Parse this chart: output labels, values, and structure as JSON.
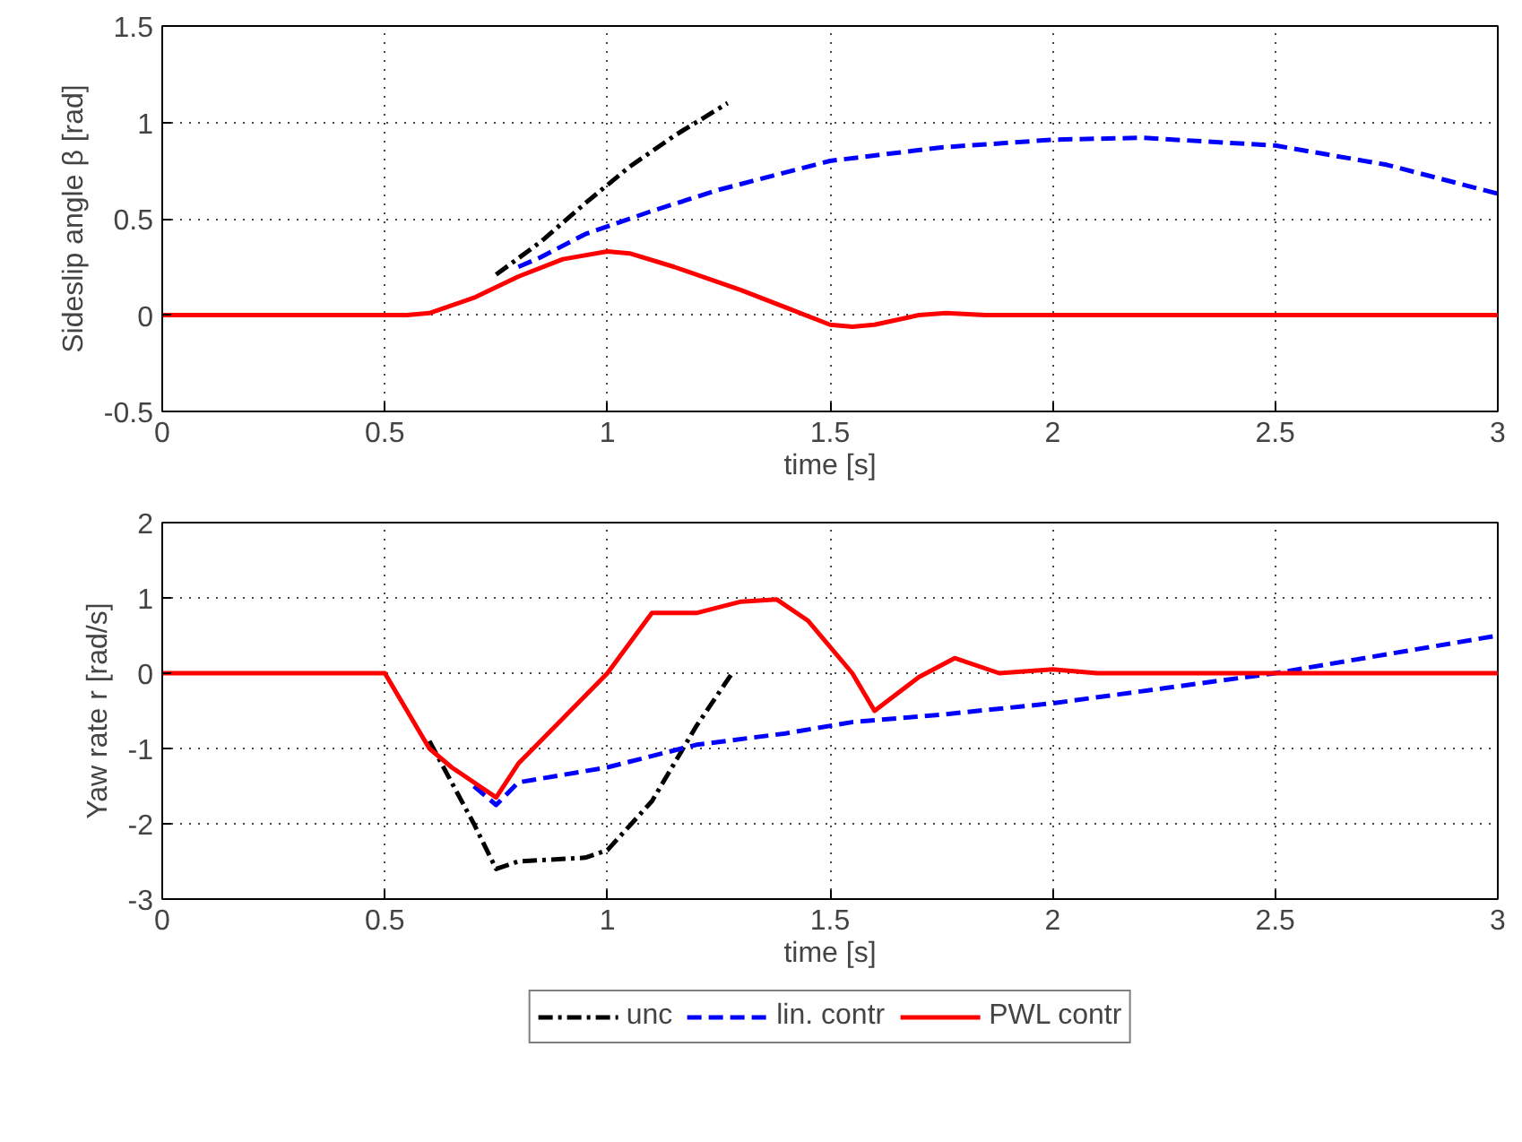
{
  "chart_data": [
    {
      "type": "line",
      "xlabel": "time [s]",
      "ylabel": "Sideslip angle β [rad]",
      "xlim": [
        0,
        3
      ],
      "ylim": [
        -0.5,
        1.5
      ],
      "xticks": [
        0,
        0.5,
        1,
        1.5,
        2,
        2.5,
        3
      ],
      "yticks": [
        -0.5,
        0,
        0.5,
        1,
        1.5
      ],
      "grid": true,
      "legend": false,
      "series": [
        {
          "color": "#000000",
          "line_style": "dashdot",
          "x": [
            0.75,
            0.85,
            0.95,
            1.05,
            1.15,
            1.27
          ],
          "values": [
            0.21,
            0.38,
            0.58,
            0.77,
            0.93,
            1.1
          ]
        },
        {
          "color": "#0000ff",
          "line_style": "dashed",
          "x": [
            0.8,
            0.85,
            0.95,
            1,
            1.1,
            1.25,
            1.5,
            1.75,
            2,
            2.2,
            2.5,
            2.75,
            3
          ],
          "values": [
            0.25,
            0.3,
            0.42,
            0.46,
            0.54,
            0.65,
            0.8,
            0.87,
            0.91,
            0.92,
            0.88,
            0.78,
            0.63
          ]
        },
        {
          "color": "#ff0000",
          "line_style": "solid",
          "x": [
            0,
            0.55,
            0.6,
            0.7,
            0.8,
            0.9,
            1,
            1.05,
            1.15,
            1.3,
            1.4,
            1.5,
            1.55,
            1.6,
            1.7,
            1.76,
            1.85,
            2,
            3
          ],
          "values": [
            0,
            0,
            0.01,
            0.09,
            0.2,
            0.29,
            0.33,
            0.32,
            0.25,
            0.13,
            0.04,
            -0.05,
            -0.06,
            -0.05,
            0,
            0.01,
            0,
            0,
            0
          ]
        }
      ]
    },
    {
      "type": "line",
      "xlabel": "time [s]",
      "ylabel": "Yaw rate r [rad/s]",
      "xlim": [
        0,
        3
      ],
      "ylim": [
        -3,
        2
      ],
      "xticks": [
        0,
        0.5,
        1,
        1.5,
        2,
        2.5,
        3
      ],
      "yticks": [
        -3,
        -2,
        -1,
        0,
        1,
        2
      ],
      "grid": true,
      "legend": "bottom",
      "series": [
        {
          "name": "unc",
          "color": "#000000",
          "line_style": "dashdot",
          "x": [
            0.6,
            0.7,
            0.75,
            0.8,
            0.95,
            1,
            1.1,
            1.2,
            1.28
          ],
          "values": [
            -0.9,
            -2.0,
            -2.6,
            -2.5,
            -2.45,
            -2.35,
            -1.7,
            -0.7,
            0
          ]
        },
        {
          "name": "lin. contr",
          "color": "#0000ff",
          "line_style": "dashed",
          "x": [
            0.7,
            0.75,
            0.8,
            1,
            1.2,
            1.4,
            1.55,
            1.75,
            2,
            2.25,
            2.5,
            2.75,
            3
          ],
          "values": [
            -1.5,
            -1.75,
            -1.45,
            -1.25,
            -0.95,
            -0.8,
            -0.65,
            -0.55,
            -0.4,
            -0.2,
            0,
            0.25,
            0.5
          ]
        },
        {
          "name": "PWL contr",
          "color": "#ff0000",
          "line_style": "solid",
          "x": [
            0,
            0.5,
            0.55,
            0.6,
            0.65,
            0.7,
            0.75,
            0.8,
            0.9,
            1,
            1.1,
            1.2,
            1.3,
            1.38,
            1.45,
            1.55,
            1.6,
            1.7,
            1.78,
            1.88,
            2,
            2.1,
            3
          ],
          "values": [
            0,
            0,
            -0.5,
            -1.0,
            -1.25,
            -1.45,
            -1.65,
            -1.2,
            -0.6,
            0,
            0.8,
            0.8,
            0.95,
            0.98,
            0.7,
            0,
            -0.5,
            -0.05,
            0.2,
            0,
            0.05,
            0,
            0
          ]
        }
      ]
    }
  ]
}
